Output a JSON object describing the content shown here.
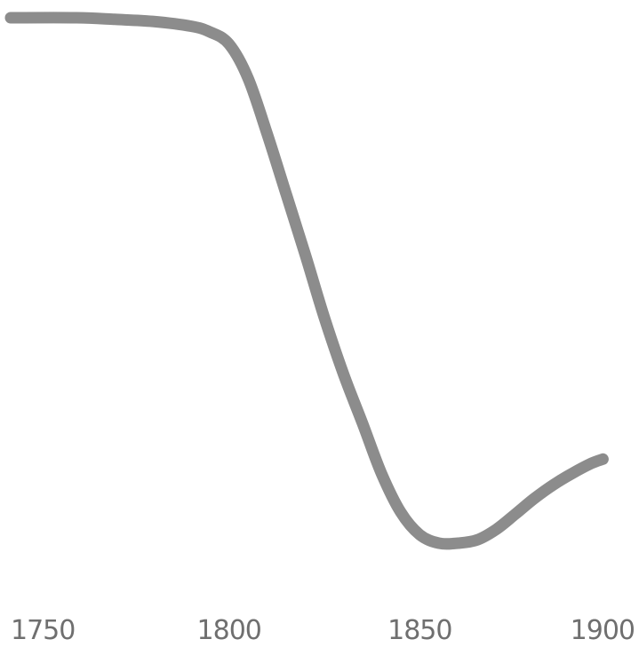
{
  "chart_data": {
    "type": "line",
    "title": "",
    "xlabel": "",
    "ylabel": "",
    "x_ticks": [
      "1750",
      "1800",
      "1850",
      "1900"
    ],
    "xlim": [
      1750,
      1900
    ],
    "ylim": [
      0,
      100
    ],
    "grid": false,
    "series": [
      {
        "x": [
          1750,
          1760,
          1770,
          1780,
          1790,
          1795,
          1800,
          1805,
          1810,
          1815,
          1820,
          1825,
          1830,
          1835,
          1840,
          1845,
          1850,
          1855,
          1860,
          1865,
          1870,
          1875,
          1880,
          1885,
          1890,
          1895,
          1898
        ],
        "y": [
          100,
          100,
          99.7,
          99.3,
          98.4,
          97.3,
          95.0,
          88.5,
          77.9,
          66.4,
          54.9,
          42.9,
          32.2,
          22.8,
          13.2,
          5.9,
          1.6,
          0.0,
          0.0,
          0.6,
          2.6,
          5.5,
          8.5,
          11.1,
          13.3,
          15.2,
          16.0
        ]
      }
    ],
    "colors": {
      "line": "#8c8c8c",
      "text": "#6f6f6f",
      "background": "#ffffff"
    }
  }
}
